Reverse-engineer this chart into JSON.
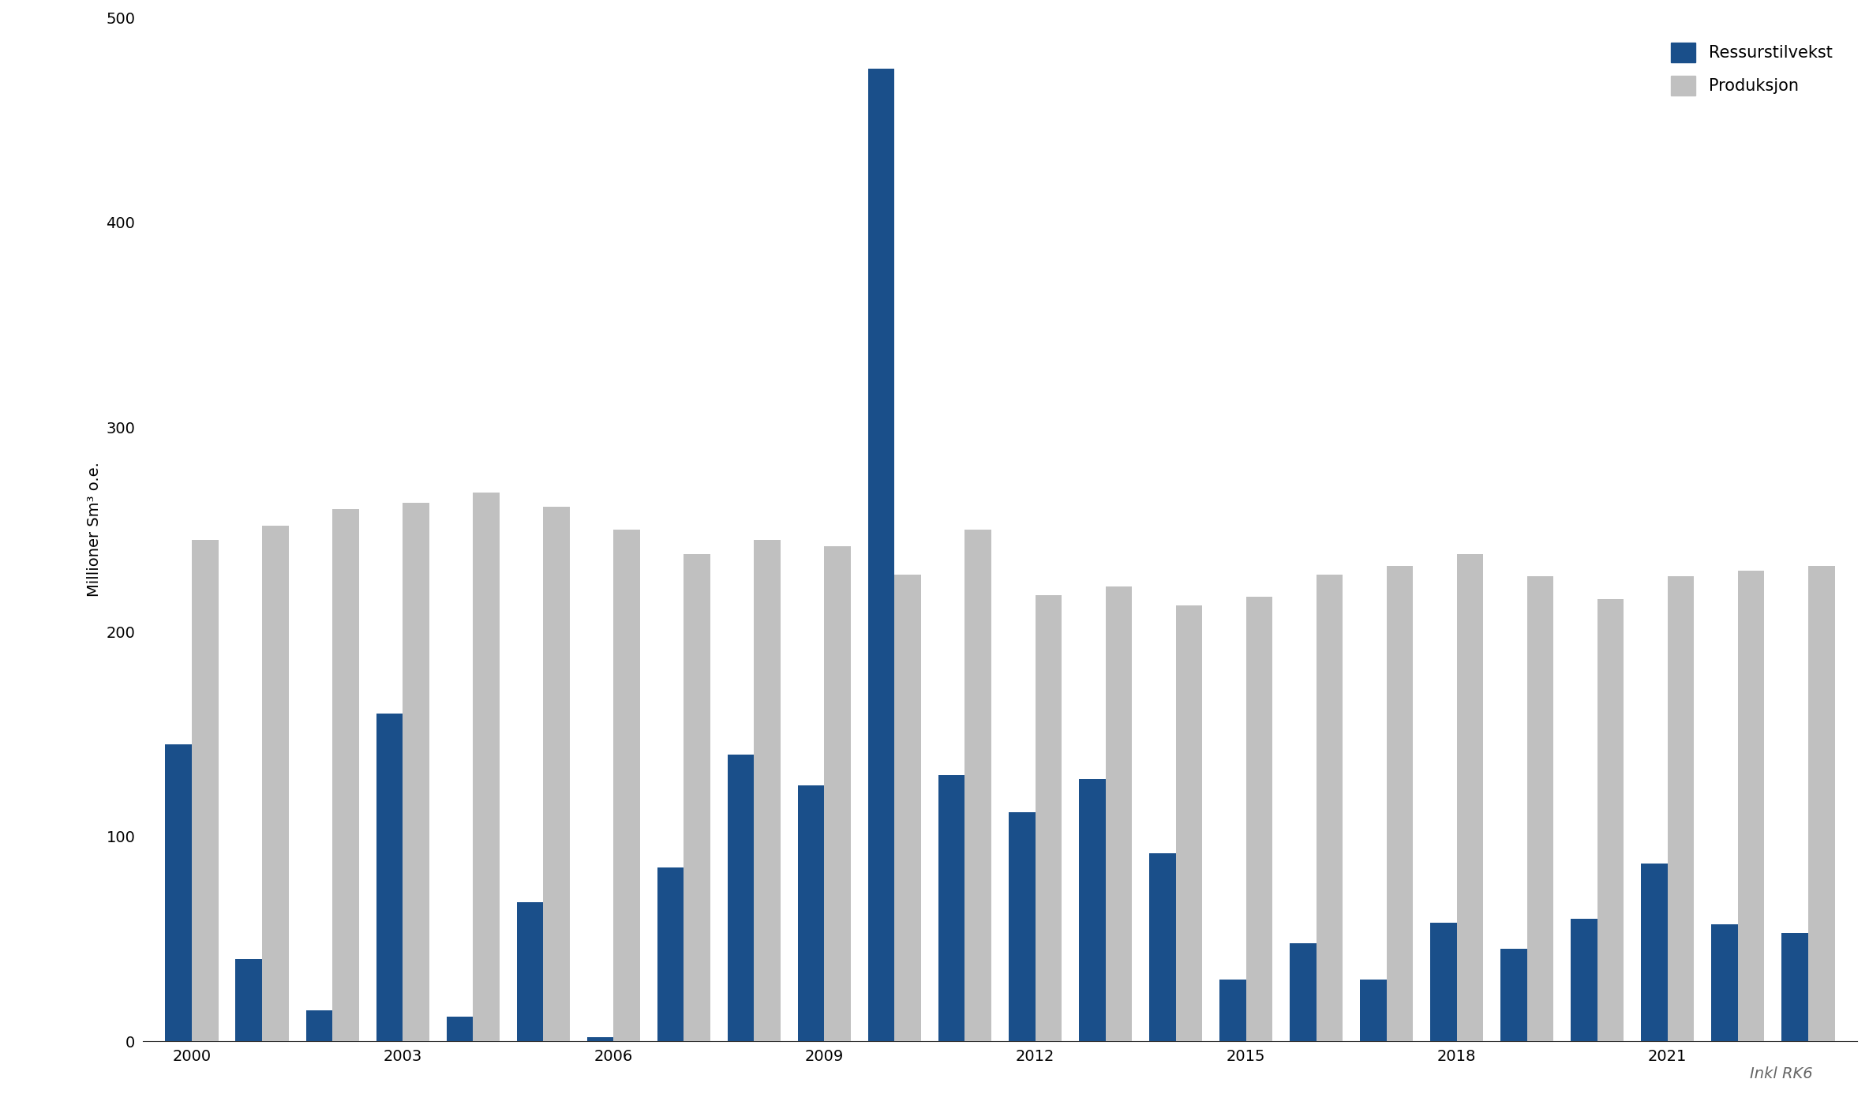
{
  "years": [
    2000,
    2001,
    2002,
    2003,
    2004,
    2005,
    2006,
    2007,
    2008,
    2009,
    2010,
    2011,
    2012,
    2013,
    2014,
    2015,
    2016,
    2017,
    2018,
    2019,
    2020,
    2021,
    2022,
    2023
  ],
  "ressurstilvekst": [
    145,
    40,
    15,
    160,
    12,
    68,
    2,
    85,
    140,
    125,
    475,
    130,
    112,
    128,
    92,
    30,
    48,
    30,
    58,
    45,
    60,
    87,
    57,
    53
  ],
  "produksjon": [
    245,
    252,
    260,
    263,
    268,
    261,
    250,
    238,
    245,
    242,
    228,
    250,
    218,
    222,
    213,
    217,
    228,
    232,
    238,
    227,
    216,
    227,
    230,
    232
  ],
  "color_blue": "#1a4f8a",
  "color_gray": "#c0c0c0",
  "ylabel": "Millioner Sm³ o.e.",
  "ylim": [
    0,
    500
  ],
  "yticks": [
    0,
    100,
    200,
    300,
    400,
    500
  ],
  "legend_ressurstilvekst": "Ressurstilvekst",
  "legend_produksjon": "Produksjon",
  "note": "Inkl RK6",
  "background_color": "#ffffff",
  "bar_width": 0.38,
  "xtick_years": [
    2000,
    2003,
    2006,
    2009,
    2012,
    2015,
    2018,
    2021
  ],
  "axis_fontsize": 14,
  "tick_fontsize": 14,
  "legend_fontsize": 15
}
